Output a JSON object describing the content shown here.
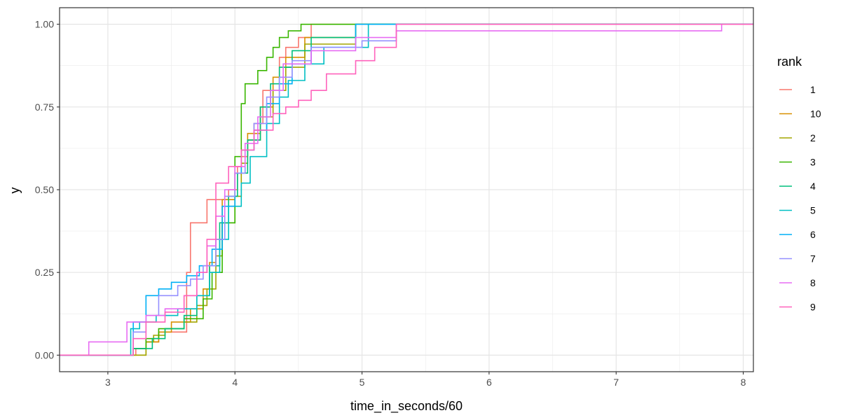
{
  "chart_data": {
    "type": "line",
    "step": true,
    "xlabel": "time_in_seconds/60",
    "ylabel": "y",
    "xlim": [
      2.62,
      8.08
    ],
    "ylim": [
      -0.05,
      1.05
    ],
    "x_ticks": [
      3,
      4,
      5,
      6,
      7,
      8
    ],
    "x_tick_labels": [
      "3",
      "4",
      "5",
      "6",
      "7",
      "8"
    ],
    "y_ticks": [
      0,
      0.25,
      0.5,
      0.75,
      1.0
    ],
    "y_tick_labels": [
      "0.00",
      "0.25",
      "0.50",
      "0.75",
      "1.00"
    ],
    "grid": true,
    "legend": {
      "title": "rank",
      "position": "right"
    },
    "series": [
      {
        "name": "1",
        "color": "#F8766D",
        "x": [
          2.62,
          3.22,
          3.3,
          3.4,
          3.62,
          3.65,
          3.78,
          3.95,
          4.02,
          4.05,
          4.1,
          4.15,
          4.22,
          4.35,
          4.4,
          4.5,
          4.6,
          8.08
        ],
        "y": [
          0,
          0.02,
          0.04,
          0.07,
          0.25,
          0.4,
          0.47,
          0.5,
          0.57,
          0.6,
          0.65,
          0.7,
          0.8,
          0.9,
          0.93,
          0.96,
          1.0,
          1.0
        ]
      },
      {
        "name": "10",
        "color": "#D89000",
        "x": [
          2.62,
          3.3,
          3.4,
          3.5,
          3.65,
          3.75,
          3.8,
          3.85,
          3.9,
          4.0,
          4.05,
          4.1,
          4.2,
          4.3,
          4.4,
          4.55,
          4.95,
          8.08
        ],
        "y": [
          0,
          0.04,
          0.07,
          0.1,
          0.14,
          0.2,
          0.28,
          0.35,
          0.47,
          0.55,
          0.62,
          0.67,
          0.75,
          0.84,
          0.9,
          0.96,
          1.0,
          1.0
        ]
      },
      {
        "name": "2",
        "color": "#A3A500",
        "x": [
          2.62,
          3.3,
          3.36,
          3.45,
          3.6,
          3.7,
          3.78,
          3.85,
          3.9,
          4.0,
          4.05,
          4.1,
          4.2,
          4.3,
          4.4,
          4.55,
          4.95,
          8.08
        ],
        "y": [
          0,
          0.04,
          0.06,
          0.08,
          0.1,
          0.15,
          0.2,
          0.3,
          0.4,
          0.48,
          0.58,
          0.65,
          0.72,
          0.8,
          0.87,
          0.94,
          1.0,
          1.0
        ]
      },
      {
        "name": "3",
        "color": "#39B600",
        "x": [
          2.62,
          3.2,
          3.3,
          3.4,
          3.6,
          3.75,
          3.82,
          3.9,
          4.0,
          4.05,
          4.08,
          4.18,
          4.25,
          4.3,
          4.35,
          4.42,
          4.52,
          8.08
        ],
        "y": [
          0,
          0.02,
          0.05,
          0.08,
          0.11,
          0.17,
          0.25,
          0.4,
          0.6,
          0.76,
          0.82,
          0.86,
          0.9,
          0.93,
          0.96,
          0.98,
          1.0,
          1.0
        ]
      },
      {
        "name": "4",
        "color": "#00BF7D",
        "x": [
          2.62,
          3.2,
          3.35,
          3.45,
          3.6,
          3.7,
          3.8,
          3.88,
          3.95,
          4.02,
          4.1,
          4.2,
          4.28,
          4.35,
          4.45,
          4.6,
          4.95,
          8.08
        ],
        "y": [
          0,
          0.02,
          0.05,
          0.08,
          0.12,
          0.18,
          0.27,
          0.4,
          0.48,
          0.55,
          0.65,
          0.75,
          0.82,
          0.87,
          0.92,
          0.96,
          1.0,
          1.0
        ]
      },
      {
        "name": "5",
        "color": "#00BFC4",
        "x": [
          2.62,
          3.18,
          3.25,
          3.38,
          3.55,
          3.7,
          3.8,
          3.88,
          3.95,
          4.05,
          4.12,
          4.25,
          4.35,
          4.42,
          4.55,
          4.7,
          5.05,
          8.08
        ],
        "y": [
          0,
          0.08,
          0.1,
          0.12,
          0.14,
          0.18,
          0.25,
          0.35,
          0.45,
          0.52,
          0.6,
          0.7,
          0.78,
          0.83,
          0.88,
          0.93,
          1.0,
          1.0
        ]
      },
      {
        "name": "6",
        "color": "#00B0F6",
        "x": [
          2.62,
          3.2,
          3.3,
          3.4,
          3.5,
          3.62,
          3.72,
          3.82,
          3.9,
          4.0,
          4.05,
          4.15,
          4.25,
          4.35,
          4.45,
          4.6,
          4.95,
          8.08
        ],
        "y": [
          0,
          0.1,
          0.18,
          0.2,
          0.22,
          0.24,
          0.27,
          0.32,
          0.45,
          0.55,
          0.62,
          0.68,
          0.76,
          0.82,
          0.88,
          0.93,
          1.0,
          1.0
        ]
      },
      {
        "name": "7",
        "color": "#9590FF",
        "x": [
          2.62,
          3.2,
          3.3,
          3.4,
          3.55,
          3.65,
          3.75,
          3.85,
          3.92,
          4.0,
          4.08,
          4.15,
          4.25,
          4.35,
          4.45,
          4.6,
          5.0,
          5.27,
          8.08
        ],
        "y": [
          0,
          0.07,
          0.12,
          0.18,
          0.21,
          0.23,
          0.27,
          0.35,
          0.48,
          0.55,
          0.62,
          0.7,
          0.78,
          0.84,
          0.89,
          0.93,
          0.95,
          1.0,
          1.0
        ]
      },
      {
        "name": "8",
        "color": "#E76BF3",
        "x": [
          2.62,
          2.85,
          3.15,
          3.3,
          3.45,
          3.6,
          3.7,
          3.78,
          3.85,
          3.92,
          4.0,
          4.08,
          4.18,
          4.28,
          4.38,
          4.6,
          4.95,
          5.27,
          7.83,
          8.08
        ],
        "y": [
          0,
          0.04,
          0.1,
          0.12,
          0.14,
          0.18,
          0.25,
          0.33,
          0.42,
          0.5,
          0.57,
          0.64,
          0.72,
          0.8,
          0.88,
          0.92,
          0.96,
          0.98,
          1.0,
          1.0
        ]
      },
      {
        "name": "9",
        "color": "#FF62BC",
        "x": [
          2.62,
          3.2,
          3.3,
          3.45,
          3.6,
          3.7,
          3.78,
          3.85,
          3.95,
          4.05,
          4.15,
          4.3,
          4.4,
          4.5,
          4.6,
          4.72,
          4.95,
          5.1,
          5.27,
          8.08
        ],
        "y": [
          0,
          0.05,
          0.1,
          0.13,
          0.18,
          0.25,
          0.35,
          0.52,
          0.57,
          0.62,
          0.68,
          0.73,
          0.75,
          0.77,
          0.8,
          0.85,
          0.89,
          0.93,
          1.0,
          1.0
        ]
      }
    ]
  }
}
